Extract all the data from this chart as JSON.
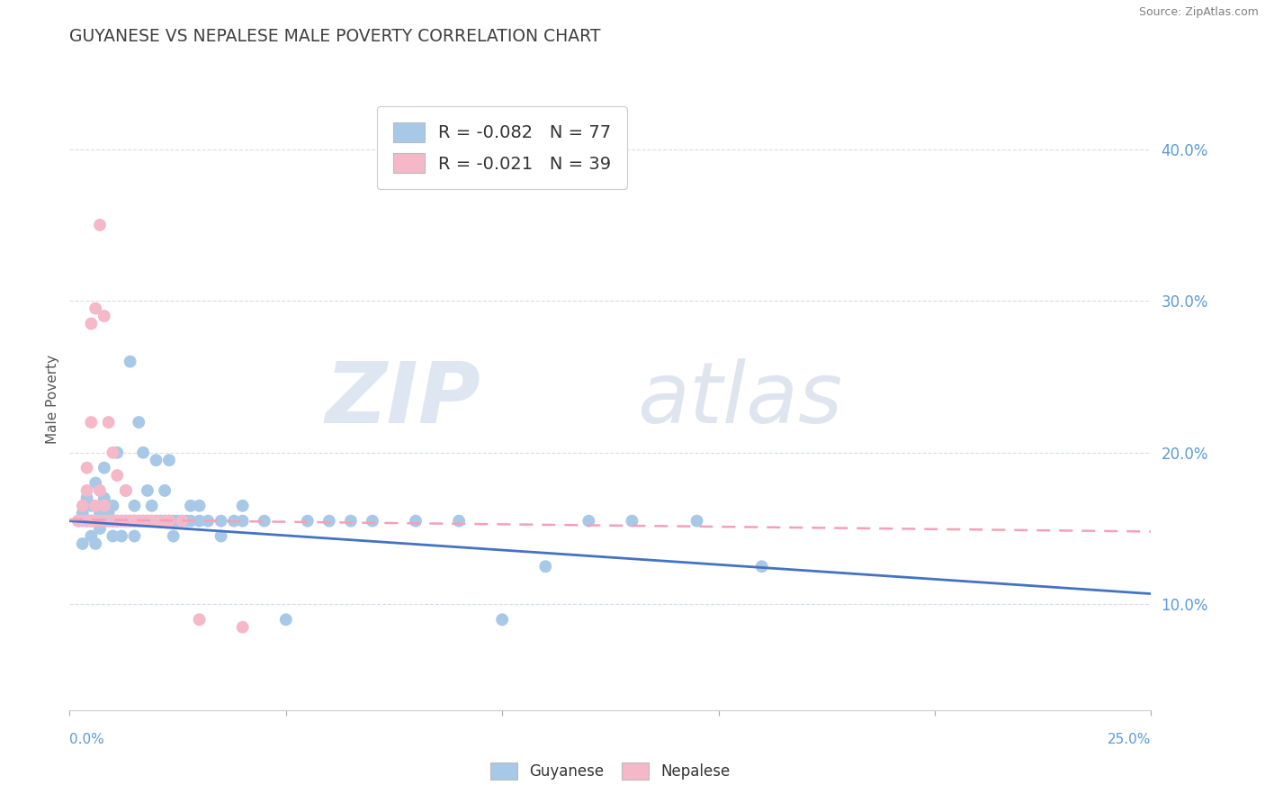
{
  "title": "GUYANESE VS NEPALESE MALE POVERTY CORRELATION CHART",
  "source": "Source: ZipAtlas.com",
  "ylabel": "Male Poverty",
  "ytick_vals": [
    0.1,
    0.2,
    0.3,
    0.4
  ],
  "xlim": [
    0.0,
    0.25
  ],
  "ylim": [
    0.03,
    0.44
  ],
  "legend_entries": [
    {
      "label": "R = -0.082   N = 77",
      "color": "#a8c8e8"
    },
    {
      "label": "R = -0.021   N = 39",
      "color": "#f4b8c8"
    }
  ],
  "legend_bottom": [
    "Guyanese",
    "Nepalese"
  ],
  "guyanese_color": "#a8c8e8",
  "nepalese_color": "#f4b8c8",
  "guyanese_line_color": "#4472c4",
  "nepalese_line_color": "#f4a0b8",
  "background_color": "#ffffff",
  "grid_color": "#d8dde8",
  "guyanese_scatter": [
    [
      0.002,
      0.155
    ],
    [
      0.003,
      0.14
    ],
    [
      0.003,
      0.16
    ],
    [
      0.004,
      0.155
    ],
    [
      0.004,
      0.17
    ],
    [
      0.005,
      0.145
    ],
    [
      0.005,
      0.155
    ],
    [
      0.005,
      0.165
    ],
    [
      0.006,
      0.14
    ],
    [
      0.006,
      0.155
    ],
    [
      0.006,
      0.18
    ],
    [
      0.007,
      0.15
    ],
    [
      0.007,
      0.155
    ],
    [
      0.007,
      0.16
    ],
    [
      0.008,
      0.155
    ],
    [
      0.008,
      0.17
    ],
    [
      0.008,
      0.19
    ],
    [
      0.009,
      0.155
    ],
    [
      0.009,
      0.16
    ],
    [
      0.01,
      0.145
    ],
    [
      0.01,
      0.155
    ],
    [
      0.01,
      0.165
    ],
    [
      0.011,
      0.155
    ],
    [
      0.011,
      0.2
    ],
    [
      0.012,
      0.145
    ],
    [
      0.012,
      0.155
    ],
    [
      0.013,
      0.155
    ],
    [
      0.013,
      0.175
    ],
    [
      0.014,
      0.155
    ],
    [
      0.014,
      0.26
    ],
    [
      0.015,
      0.145
    ],
    [
      0.015,
      0.155
    ],
    [
      0.015,
      0.165
    ],
    [
      0.016,
      0.155
    ],
    [
      0.016,
      0.22
    ],
    [
      0.017,
      0.155
    ],
    [
      0.017,
      0.2
    ],
    [
      0.018,
      0.155
    ],
    [
      0.018,
      0.175
    ],
    [
      0.019,
      0.155
    ],
    [
      0.019,
      0.165
    ],
    [
      0.02,
      0.155
    ],
    [
      0.02,
      0.195
    ],
    [
      0.021,
      0.155
    ],
    [
      0.022,
      0.155
    ],
    [
      0.022,
      0.175
    ],
    [
      0.023,
      0.155
    ],
    [
      0.023,
      0.195
    ],
    [
      0.024,
      0.145
    ],
    [
      0.024,
      0.155
    ],
    [
      0.025,
      0.155
    ],
    [
      0.026,
      0.155
    ],
    [
      0.027,
      0.155
    ],
    [
      0.028,
      0.155
    ],
    [
      0.028,
      0.165
    ],
    [
      0.03,
      0.155
    ],
    [
      0.03,
      0.165
    ],
    [
      0.032,
      0.155
    ],
    [
      0.035,
      0.145
    ],
    [
      0.035,
      0.155
    ],
    [
      0.038,
      0.155
    ],
    [
      0.04,
      0.155
    ],
    [
      0.04,
      0.165
    ],
    [
      0.045,
      0.155
    ],
    [
      0.05,
      0.09
    ],
    [
      0.055,
      0.155
    ],
    [
      0.06,
      0.155
    ],
    [
      0.065,
      0.155
    ],
    [
      0.07,
      0.155
    ],
    [
      0.08,
      0.155
    ],
    [
      0.09,
      0.155
    ],
    [
      0.1,
      0.09
    ],
    [
      0.11,
      0.125
    ],
    [
      0.12,
      0.155
    ],
    [
      0.13,
      0.155
    ],
    [
      0.145,
      0.155
    ],
    [
      0.16,
      0.125
    ]
  ],
  "nepalese_scatter": [
    [
      0.002,
      0.155
    ],
    [
      0.003,
      0.155
    ],
    [
      0.003,
      0.165
    ],
    [
      0.004,
      0.155
    ],
    [
      0.004,
      0.175
    ],
    [
      0.004,
      0.19
    ],
    [
      0.005,
      0.155
    ],
    [
      0.005,
      0.22
    ],
    [
      0.005,
      0.285
    ],
    [
      0.006,
      0.155
    ],
    [
      0.006,
      0.165
    ],
    [
      0.006,
      0.295
    ],
    [
      0.007,
      0.155
    ],
    [
      0.007,
      0.175
    ],
    [
      0.007,
      0.35
    ],
    [
      0.008,
      0.155
    ],
    [
      0.008,
      0.165
    ],
    [
      0.008,
      0.29
    ],
    [
      0.009,
      0.155
    ],
    [
      0.009,
      0.22
    ],
    [
      0.01,
      0.155
    ],
    [
      0.01,
      0.2
    ],
    [
      0.011,
      0.155
    ],
    [
      0.011,
      0.185
    ],
    [
      0.012,
      0.155
    ],
    [
      0.013,
      0.155
    ],
    [
      0.013,
      0.175
    ],
    [
      0.014,
      0.155
    ],
    [
      0.015,
      0.155
    ],
    [
      0.016,
      0.155
    ],
    [
      0.017,
      0.155
    ],
    [
      0.018,
      0.155
    ],
    [
      0.019,
      0.155
    ],
    [
      0.02,
      0.155
    ],
    [
      0.022,
      0.155
    ],
    [
      0.023,
      0.155
    ],
    [
      0.026,
      0.155
    ],
    [
      0.03,
      0.09
    ],
    [
      0.04,
      0.085
    ]
  ]
}
